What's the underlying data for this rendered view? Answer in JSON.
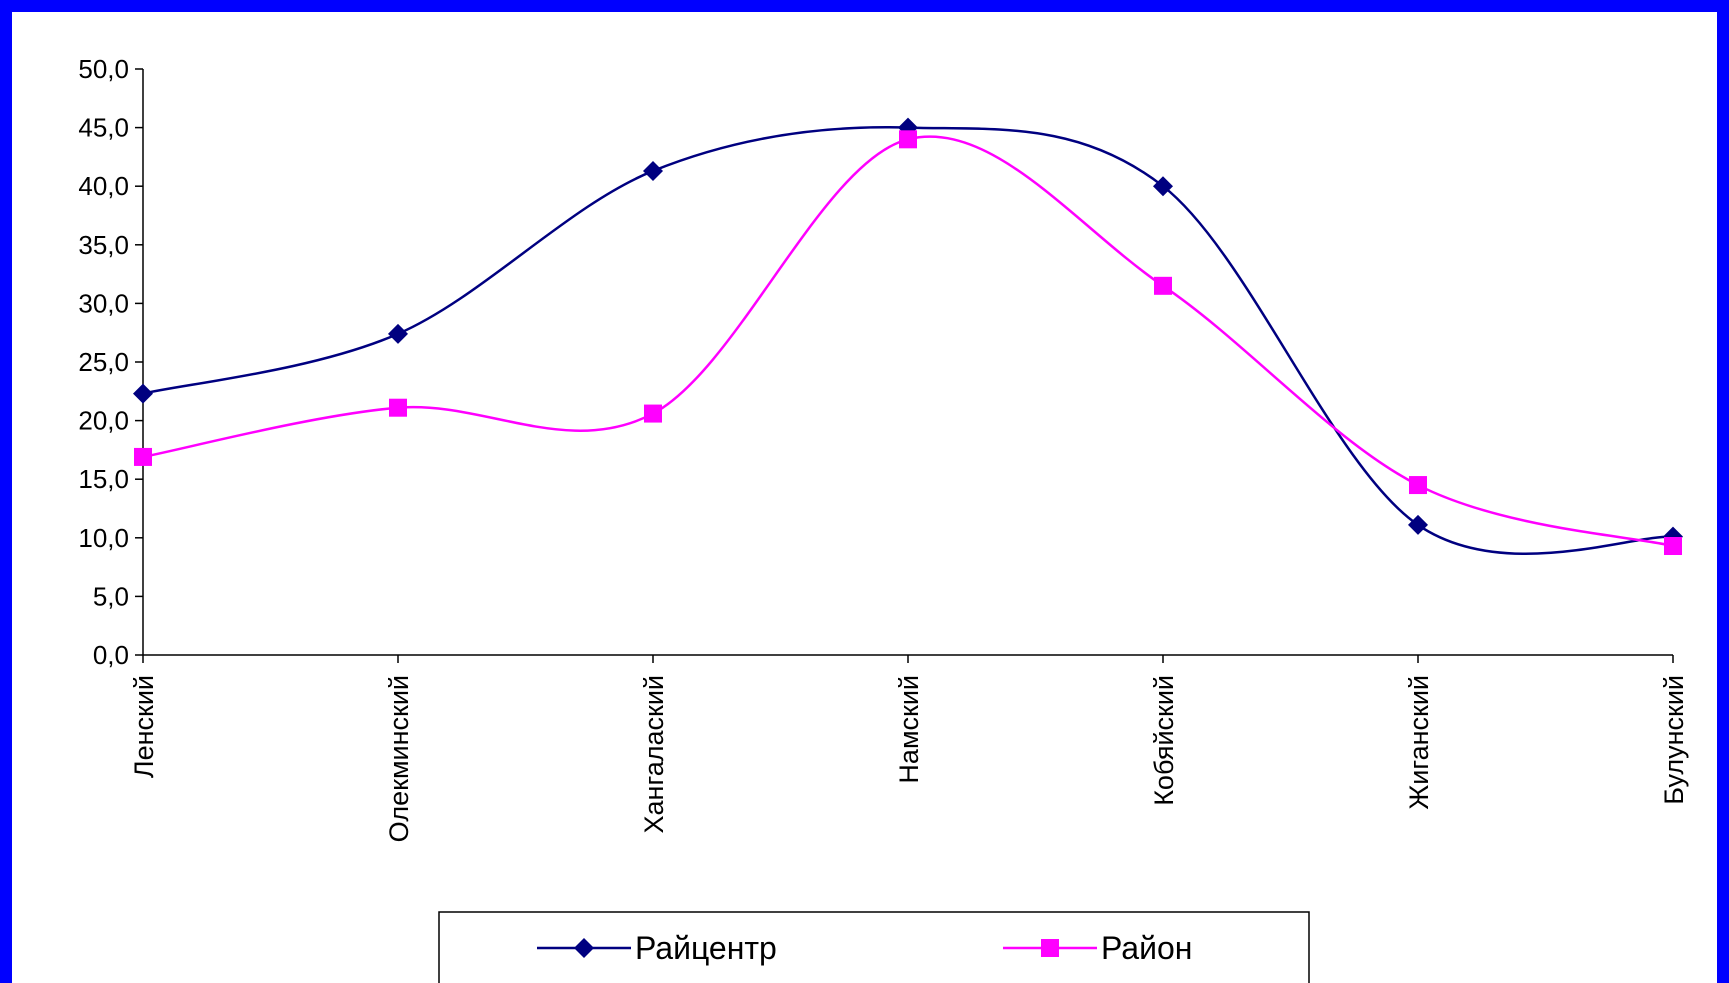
{
  "chart_data": {
    "type": "line",
    "title": "",
    "xlabel": "",
    "ylabel": "",
    "categories": [
      "Ленский",
      "Олекминский",
      "Хангалаский",
      "Намский",
      "Кобяйский",
      "Жиганский",
      "Булунский"
    ],
    "ylim": [
      0,
      50
    ],
    "y_ticks": [
      "0,0",
      "5,0",
      "10,0",
      "15,0",
      "20,0",
      "25,0",
      "30,0",
      "35,0",
      "40,0",
      "45,0",
      "50,0"
    ],
    "grid": false,
    "legend_position": "bottom",
    "smooth": true,
    "series": [
      {
        "name": "Райцентр",
        "color": "#000080",
        "marker": "diamond",
        "values": [
          22.3,
          27.4,
          41.3,
          45.0,
          40.0,
          11.1,
          10.1
        ]
      },
      {
        "name": "Район",
        "color": "#ff00ff",
        "marker": "square",
        "values": [
          16.9,
          21.1,
          20.6,
          44.0,
          31.5,
          14.5,
          9.3
        ]
      }
    ]
  }
}
